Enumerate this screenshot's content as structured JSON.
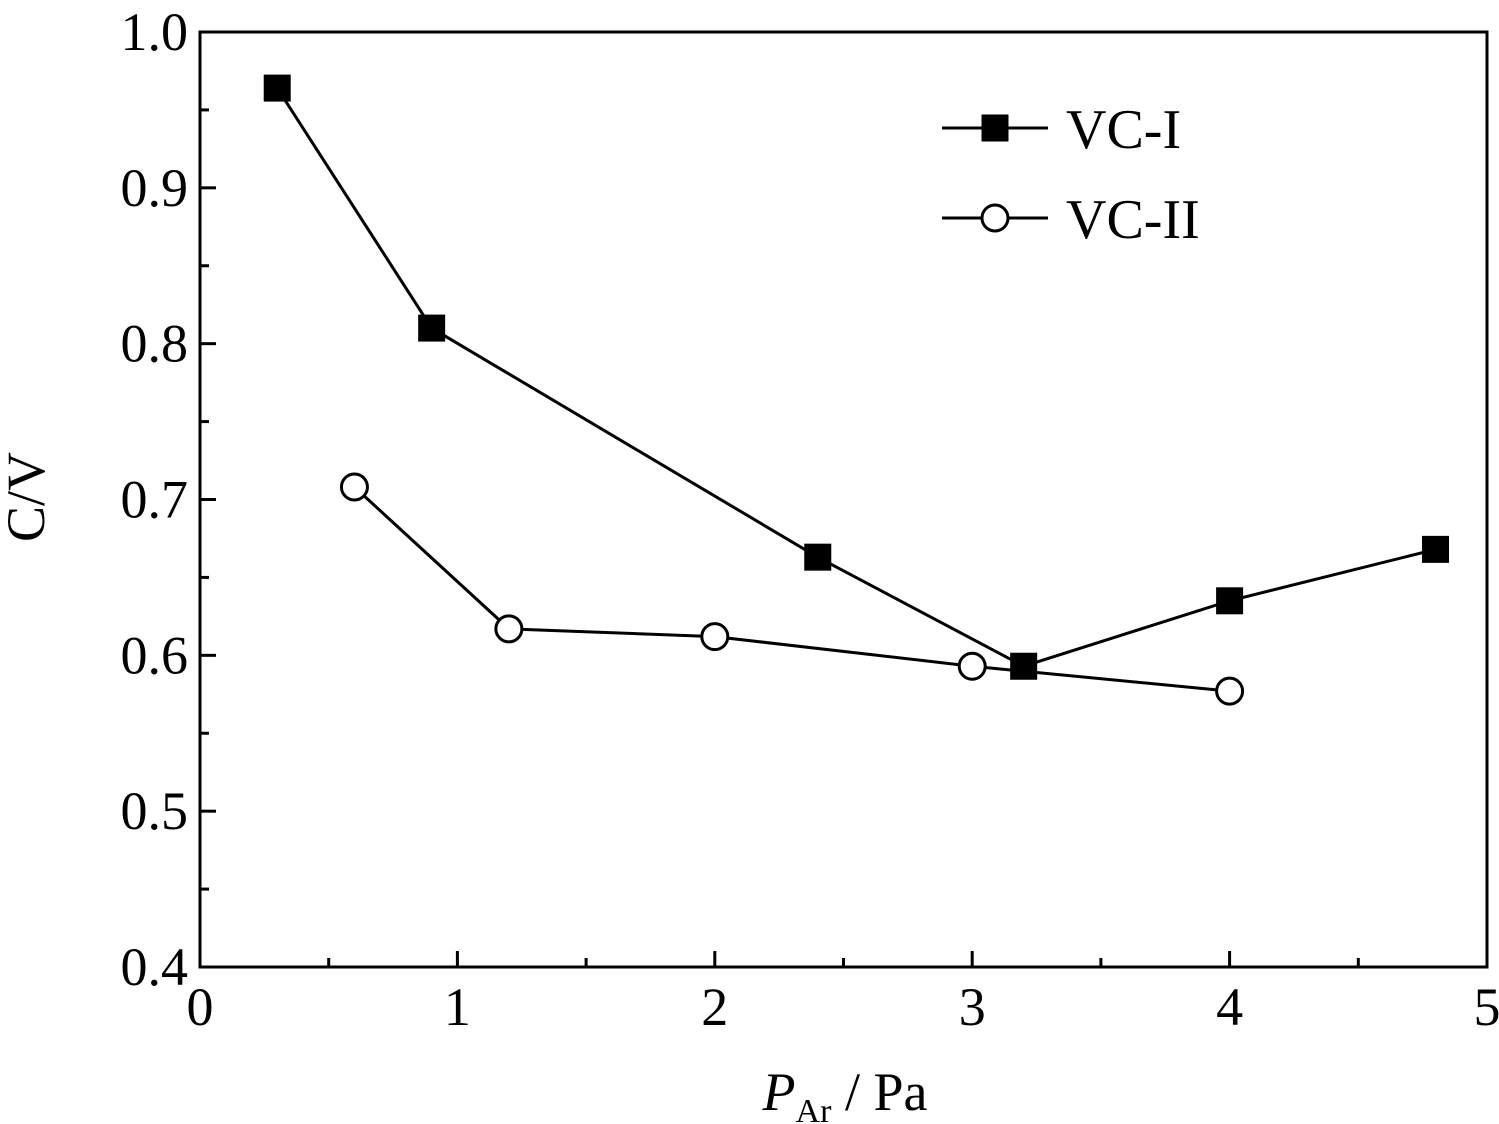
{
  "chart_data": {
    "type": "line",
    "xlabel": {
      "main": "P",
      "sub": "Ar",
      "unit": " / Pa"
    },
    "ylabel": "C/V",
    "xlim": [
      0,
      5
    ],
    "ylim": [
      0.4,
      1.0
    ],
    "xticks": [
      0,
      1,
      2,
      3,
      4,
      5
    ],
    "xtick_labels": [
      "0",
      "1",
      "2",
      "3",
      "4",
      "5"
    ],
    "yticks": [
      0.4,
      0.5,
      0.6,
      0.7,
      0.8,
      0.9,
      1.0
    ],
    "ytick_labels": [
      "0.4",
      "0.5",
      "0.6",
      "0.7",
      "0.8",
      "0.9",
      "1.0"
    ],
    "x_minor_step": 0.5,
    "y_minor_step": 0.05,
    "grid": false,
    "legend_position": "top-right",
    "series": [
      {
        "name": "VC-I",
        "marker": "filled-square",
        "color": "#000000",
        "x": [
          0.3,
          0.9,
          2.4,
          3.2,
          4.0,
          4.8
        ],
        "y": [
          0.964,
          0.81,
          0.663,
          0.593,
          0.635,
          0.668
        ]
      },
      {
        "name": "VC-II",
        "marker": "open-circle",
        "color": "#000000",
        "x": [
          0.6,
          1.2,
          2.0,
          3.0,
          4.0
        ],
        "y": [
          0.708,
          0.617,
          0.612,
          0.593,
          0.577
        ]
      }
    ]
  }
}
